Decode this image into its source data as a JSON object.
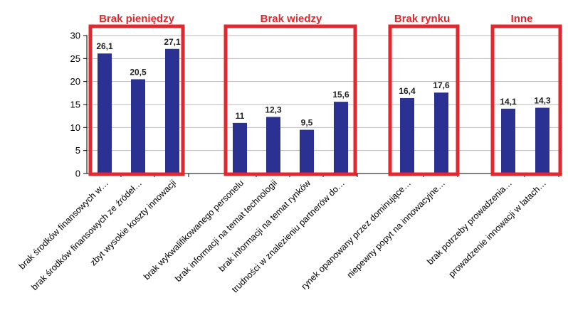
{
  "chart_data": {
    "type": "bar",
    "ylim": [
      0,
      30
    ],
    "yticks": [
      0,
      5,
      10,
      15,
      20,
      25,
      30
    ],
    "grid": true,
    "bar_color": "#2b3193",
    "box_color": "#e0282e",
    "groups": [
      {
        "title": "Brak pieniędzy",
        "categories": [
          "brak środków finansowych w…",
          "brak środków finansowych ze źródeł…",
          "zbyt wysokie koszty innowacji"
        ],
        "values": [
          26.1,
          20.5,
          27.1
        ],
        "labels": [
          "26,1",
          "20,5",
          "27,1"
        ]
      },
      {
        "title": "Brak wiedzy",
        "categories": [
          "brak wykwalifikowanego personelu",
          "brak informacji na temat technologii",
          "brak informacji na temat rynków",
          "trudności w znalezieniu partnerów do…"
        ],
        "values": [
          11,
          12.3,
          9.5,
          15.6
        ],
        "labels": [
          "11",
          "12,3",
          "9,5",
          "15,6"
        ]
      },
      {
        "title": "Brak rynku",
        "categories": [
          "rynek opanowany przez dominujące…",
          "niepewny popyt na innowacyjne…"
        ],
        "values": [
          16.4,
          17.6
        ],
        "labels": [
          "16,4",
          "17,6"
        ]
      },
      {
        "title": "Inne",
        "categories": [
          "brak potrzeby prowadzenia…",
          "prowadzenie innowacji w latach…"
        ],
        "values": [
          14.1,
          14.3
        ],
        "labels": [
          "14,1",
          "14,3"
        ]
      }
    ]
  }
}
